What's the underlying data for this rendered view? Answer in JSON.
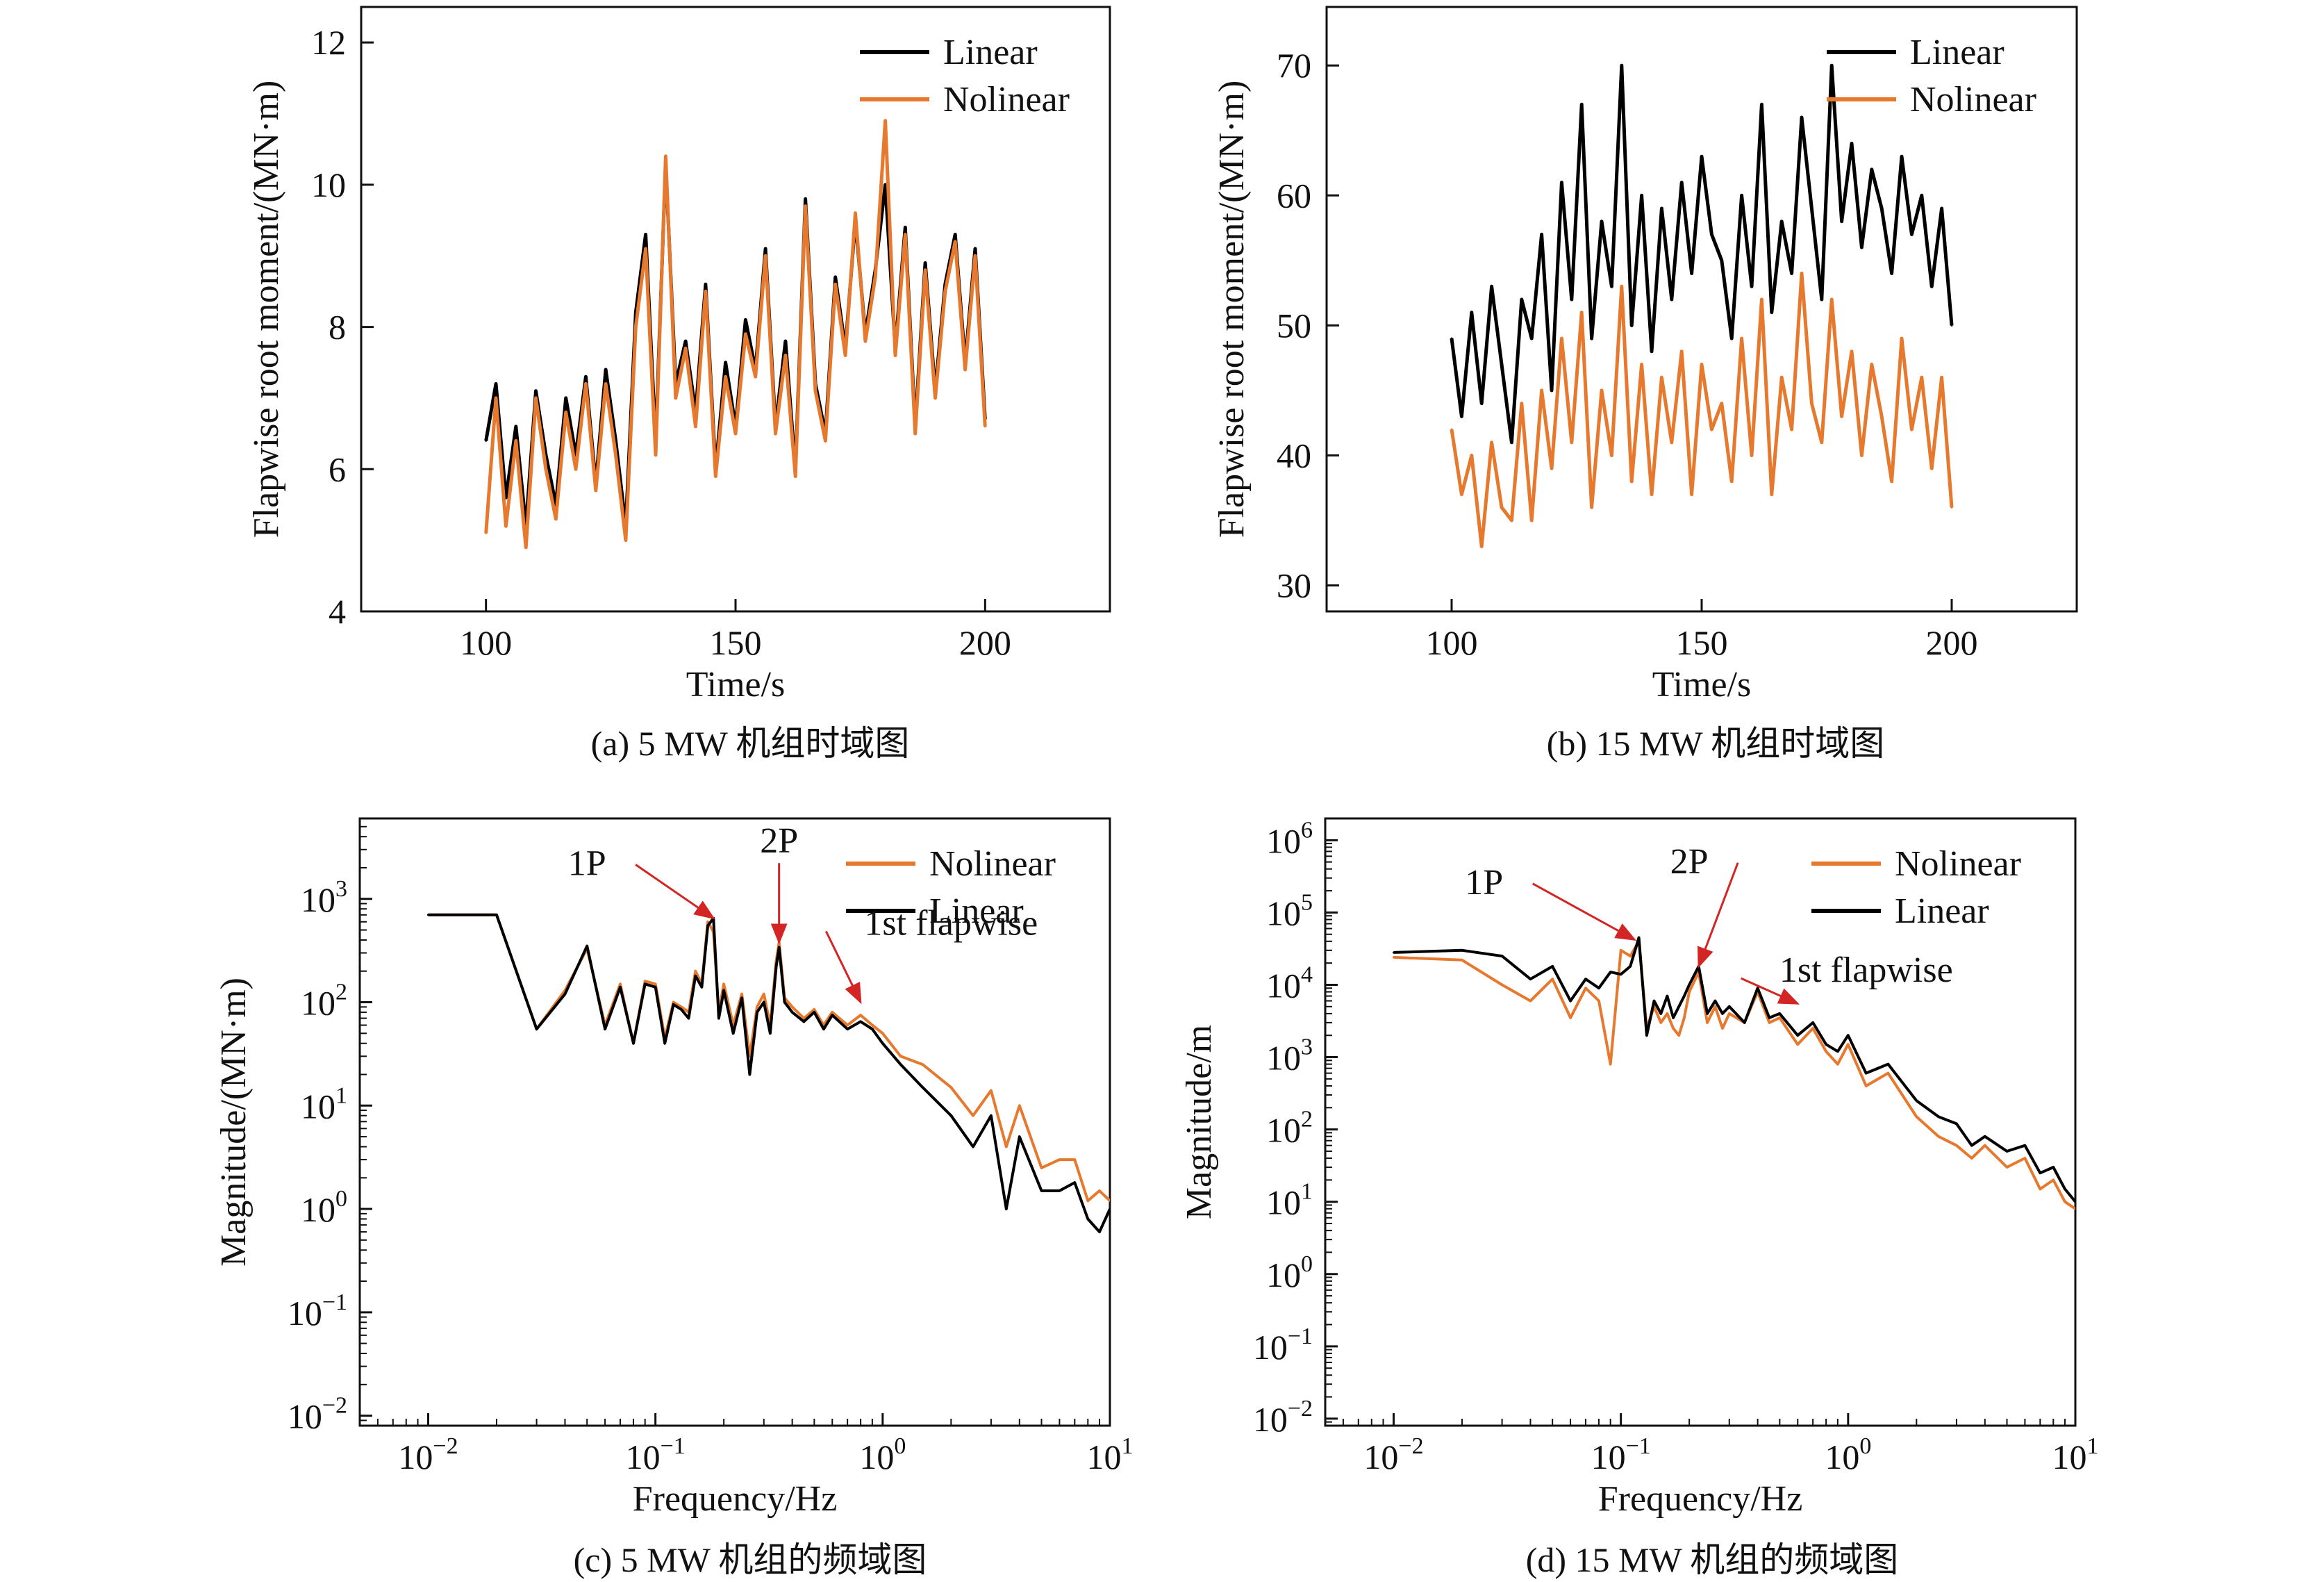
{
  "chart_data": [
    {
      "id": "a",
      "type": "line",
      "caption": "(a) 5 MW 机组时域图",
      "xlabel": "Time/s",
      "ylabel": "Flapwise root moment/(MN·m)",
      "xlim": [
        75,
        225
      ],
      "ylim": [
        4,
        12.5
      ],
      "xticks": [
        100,
        150,
        200
      ],
      "yticks": [
        4,
        6,
        8,
        10,
        12
      ],
      "legend_position": "top-right",
      "x": [
        100,
        102,
        104,
        106,
        108,
        110,
        112,
        114,
        116,
        118,
        120,
        122,
        124,
        126,
        128,
        130,
        132,
        134,
        136,
        138,
        140,
        142,
        144,
        146,
        148,
        150,
        152,
        154,
        156,
        158,
        160,
        162,
        164,
        166,
        168,
        170,
        172,
        174,
        176,
        178,
        180,
        182,
        184,
        186,
        188,
        190,
        192,
        194,
        196,
        198,
        200
      ],
      "series": [
        {
          "name": "Linear",
          "color": "#000000",
          "values": [
            6.4,
            7.2,
            5.6,
            6.6,
            5.2,
            7.1,
            6.2,
            5.5,
            7.0,
            6.2,
            7.3,
            5.8,
            7.4,
            6.4,
            5.2,
            8.2,
            9.3,
            6.4,
            10.3,
            7.2,
            7.8,
            6.8,
            8.6,
            6.0,
            7.5,
            6.6,
            8.1,
            7.4,
            9.1,
            6.6,
            7.8,
            6.0,
            9.8,
            7.2,
            6.5,
            8.7,
            7.7,
            9.5,
            7.9,
            8.8,
            10.0,
            7.7,
            9.4,
            6.6,
            8.9,
            7.1,
            8.6,
            9.3,
            7.5,
            9.1,
            6.7
          ]
        },
        {
          "name": "Nolinear",
          "color": "#E6792D",
          "values": [
            5.1,
            7.0,
            5.2,
            6.4,
            4.9,
            7.0,
            6.0,
            5.3,
            6.8,
            6.0,
            7.2,
            5.7,
            7.2,
            6.2,
            5.0,
            8.0,
            9.1,
            6.2,
            10.4,
            7.0,
            7.7,
            6.6,
            8.5,
            5.9,
            7.3,
            6.5,
            7.9,
            7.3,
            9.0,
            6.5,
            7.6,
            5.9,
            9.7,
            7.1,
            6.4,
            8.6,
            7.6,
            9.6,
            7.8,
            8.7,
            10.9,
            7.6,
            9.3,
            6.5,
            8.8,
            7.0,
            8.5,
            9.2,
            7.4,
            9.0,
            6.6
          ]
        }
      ]
    },
    {
      "id": "b",
      "type": "line",
      "caption": "(b) 15 MW 机组时域图",
      "xlabel": "Time/s",
      "ylabel": "Flapwise root moment/(MN·m)",
      "xlim": [
        75,
        225
      ],
      "ylim": [
        28,
        74.5
      ],
      "xticks": [
        100,
        150,
        200
      ],
      "yticks": [
        30,
        40,
        50,
        60,
        70
      ],
      "legend_position": "top-right",
      "x": [
        100,
        102,
        104,
        106,
        108,
        110,
        112,
        114,
        116,
        118,
        120,
        122,
        124,
        126,
        128,
        130,
        132,
        134,
        136,
        138,
        140,
        142,
        144,
        146,
        148,
        150,
        152,
        154,
        156,
        158,
        160,
        162,
        164,
        166,
        168,
        170,
        172,
        174,
        176,
        178,
        180,
        182,
        184,
        186,
        188,
        190,
        192,
        194,
        196,
        198,
        200
      ],
      "series": [
        {
          "name": "Linear",
          "color": "#000000",
          "values": [
            49,
            43,
            51,
            44,
            53,
            47,
            41,
            52,
            49,
            57,
            45,
            61,
            52,
            67,
            49,
            58,
            53,
            70,
            50,
            60,
            48,
            59,
            52,
            61,
            54,
            63,
            57,
            55,
            49,
            60,
            53,
            67,
            51,
            58,
            54,
            66,
            59,
            52,
            70,
            58,
            64,
            56,
            62,
            59,
            54,
            63,
            57,
            60,
            53,
            59,
            50
          ]
        },
        {
          "name": "Nolinear",
          "color": "#E6792D",
          "values": [
            42,
            37,
            40,
            33,
            41,
            36,
            35,
            44,
            35,
            45,
            39,
            49,
            41,
            51,
            36,
            45,
            40,
            53,
            38,
            47,
            37,
            46,
            41,
            48,
            37,
            47,
            42,
            44,
            38,
            49,
            40,
            52,
            37,
            46,
            42,
            54,
            44,
            41,
            52,
            43,
            48,
            40,
            47,
            43,
            38,
            49,
            42,
            46,
            39,
            46,
            36
          ]
        }
      ]
    },
    {
      "id": "c",
      "type": "line",
      "scale": "log-log",
      "caption": "(c) 5 MW 机组的频域图",
      "xlabel": "Frequency/Hz",
      "ylabel": "Magnitude/(MN·m)",
      "xlim": [
        0.005,
        10
      ],
      "ylim": [
        0.008,
        6000
      ],
      "xticks": [
        0.01,
        0.1,
        1,
        10
      ],
      "xtick_labels": [
        [
          "10",
          "−2"
        ],
        [
          "10",
          "−1"
        ],
        [
          "10",
          "0"
        ],
        [
          "10",
          "1"
        ]
      ],
      "yticks": [
        0.01,
        0.1,
        1,
        10,
        100,
        1000
      ],
      "ytick_labels": [
        [
          "10",
          "−2"
        ],
        [
          "10",
          "−1"
        ],
        [
          "10",
          "0"
        ],
        [
          "10",
          "1"
        ],
        [
          "10",
          "2"
        ],
        [
          "10",
          "3"
        ]
      ],
      "legend_position": "top-right",
      "annotations": [
        {
          "text": "1P",
          "x": 0.18,
          "y": 650,
          "label_x": 0.05,
          "label_y": 1700
        },
        {
          "text": "2P",
          "x": 0.35,
          "y": 380,
          "label_x": 0.35,
          "label_y": 2800
        },
        {
          "text": "1st flapwise",
          "x": 0.8,
          "y": 100,
          "label_x": 2.0,
          "label_y": 450
        }
      ],
      "series": [
        {
          "name": "Nolinear",
          "color": "#E6792D",
          "x": [
            0.01,
            0.02,
            0.03,
            0.04,
            0.05,
            0.06,
            0.07,
            0.08,
            0.09,
            0.1,
            0.11,
            0.12,
            0.13,
            0.14,
            0.15,
            0.16,
            0.17,
            0.18,
            0.19,
            0.2,
            0.22,
            0.24,
            0.26,
            0.28,
            0.3,
            0.32,
            0.34,
            0.35,
            0.37,
            0.4,
            0.45,
            0.5,
            0.55,
            0.6,
            0.7,
            0.8,
            0.9,
            1.0,
            1.2,
            1.5,
            2.0,
            2.5,
            3.0,
            3.5,
            4.0,
            5.0,
            6.0,
            7.0,
            8.0,
            9.0,
            10.0
          ],
          "values": [
            700,
            700,
            55,
            130,
            330,
            60,
            150,
            40,
            160,
            150,
            45,
            100,
            90,
            80,
            200,
            150,
            600,
            480,
            80,
            150,
            60,
            120,
            30,
            90,
            120,
            60,
            250,
            380,
            110,
            90,
            70,
            85,
            60,
            80,
            60,
            75,
            60,
            50,
            30,
            25,
            15,
            8,
            14,
            4,
            10,
            2.5,
            3,
            3,
            1.2,
            1.5,
            1.2
          ]
        },
        {
          "name": "Linear",
          "color": "#000000",
          "x": [
            0.01,
            0.02,
            0.03,
            0.04,
            0.05,
            0.06,
            0.07,
            0.08,
            0.09,
            0.1,
            0.11,
            0.12,
            0.13,
            0.14,
            0.15,
            0.16,
            0.17,
            0.18,
            0.19,
            0.2,
            0.22,
            0.24,
            0.26,
            0.28,
            0.3,
            0.32,
            0.34,
            0.35,
            0.37,
            0.4,
            0.45,
            0.5,
            0.55,
            0.6,
            0.7,
            0.8,
            0.9,
            1.0,
            1.2,
            1.5,
            2.0,
            2.5,
            3.0,
            3.5,
            4.0,
            5.0,
            6.0,
            7.0,
            8.0,
            9.0,
            10.0
          ],
          "values": [
            700,
            700,
            55,
            120,
            350,
            55,
            140,
            40,
            150,
            140,
            40,
            95,
            85,
            70,
            180,
            140,
            550,
            650,
            70,
            130,
            50,
            110,
            20,
            80,
            100,
            50,
            220,
            340,
            100,
            80,
            65,
            80,
            55,
            75,
            55,
            65,
            55,
            40,
            25,
            15,
            8,
            4,
            8,
            1,
            5,
            1.5,
            1.5,
            1.8,
            0.8,
            0.6,
            1.0
          ]
        }
      ]
    },
    {
      "id": "d",
      "type": "line",
      "scale": "log-log",
      "caption": "(d) 15 MW 机组的频域图",
      "xlabel": "Frequency/Hz",
      "ylabel": "Magnitude/m",
      "xlim": [
        0.005,
        10
      ],
      "ylim": [
        0.008,
        2000000
      ],
      "xticks": [
        0.01,
        0.1,
        1,
        10
      ],
      "xtick_labels": [
        [
          "10",
          "−2"
        ],
        [
          "10",
          "−1"
        ],
        [
          "10",
          "0"
        ],
        [
          "10",
          "1"
        ]
      ],
      "yticks": [
        0.01,
        0.1,
        1,
        10,
        100,
        1000,
        10000,
        100000,
        1000000
      ],
      "ytick_labels": [
        [
          "10",
          "−2"
        ],
        [
          "10",
          "−1"
        ],
        [
          "10",
          "0"
        ],
        [
          "10",
          "1"
        ],
        [
          "10",
          "2"
        ],
        [
          "10",
          "3"
        ],
        [
          "10",
          "4"
        ],
        [
          "10",
          "5"
        ],
        [
          "10",
          "6"
        ]
      ],
      "legend_position": "top-right",
      "annotations": [
        {
          "text": "1P",
          "x": 0.115,
          "y": 42000,
          "label_x": 0.025,
          "label_y": 180000
        },
        {
          "text": "2P",
          "x": 0.22,
          "y": 18000,
          "label_x": 0.2,
          "label_y": 350000
        },
        {
          "text": "1st flapwise",
          "x": 0.6,
          "y": 5500,
          "label_x": 1.2,
          "label_y": 11000
        }
      ],
      "series": [
        {
          "name": "Nolinear",
          "color": "#E6792D",
          "x": [
            0.01,
            0.02,
            0.03,
            0.04,
            0.05,
            0.06,
            0.07,
            0.08,
            0.09,
            0.1,
            0.11,
            0.12,
            0.13,
            0.14,
            0.15,
            0.16,
            0.17,
            0.18,
            0.19,
            0.2,
            0.22,
            0.24,
            0.26,
            0.28,
            0.3,
            0.35,
            0.4,
            0.45,
            0.5,
            0.6,
            0.7,
            0.8,
            0.9,
            1.0,
            1.2,
            1.5,
            2.0,
            2.5,
            3.0,
            3.5,
            4.0,
            5.0,
            6.0,
            7.0,
            8.0,
            9.0,
            10.0
          ],
          "values": [
            24000,
            22000,
            10000,
            6000,
            12000,
            3500,
            9000,
            6000,
            800,
            30000,
            25000,
            40000,
            2500,
            5000,
            3000,
            4000,
            2500,
            2000,
            3500,
            8000,
            15000,
            3000,
            5000,
            2500,
            4000,
            3000,
            8000,
            3000,
            3500,
            1500,
            2500,
            1200,
            800,
            1500,
            400,
            600,
            150,
            80,
            60,
            40,
            60,
            30,
            40,
            15,
            20,
            10,
            8
          ]
        },
        {
          "name": "Linear",
          "color": "#000000",
          "x": [
            0.01,
            0.02,
            0.03,
            0.04,
            0.05,
            0.06,
            0.07,
            0.08,
            0.09,
            0.1,
            0.11,
            0.12,
            0.13,
            0.14,
            0.15,
            0.16,
            0.17,
            0.18,
            0.19,
            0.2,
            0.22,
            0.24,
            0.26,
            0.28,
            0.3,
            0.35,
            0.4,
            0.45,
            0.5,
            0.6,
            0.7,
            0.8,
            0.9,
            1.0,
            1.2,
            1.5,
            2.0,
            2.5,
            3.0,
            3.5,
            4.0,
            5.0,
            6.0,
            7.0,
            8.0,
            9.0,
            10.0
          ],
          "values": [
            28000,
            30000,
            25000,
            12000,
            18000,
            6000,
            12000,
            9000,
            15000,
            14000,
            18000,
            45000,
            2000,
            6000,
            4000,
            7000,
            3500,
            5000,
            7000,
            10000,
            18000,
            4000,
            6000,
            4000,
            5000,
            3000,
            9000,
            3500,
            4000,
            2000,
            3000,
            1500,
            1200,
            2000,
            600,
            800,
            250,
            150,
            120,
            60,
            80,
            50,
            60,
            25,
            30,
            15,
            10
          ]
        }
      ]
    }
  ]
}
